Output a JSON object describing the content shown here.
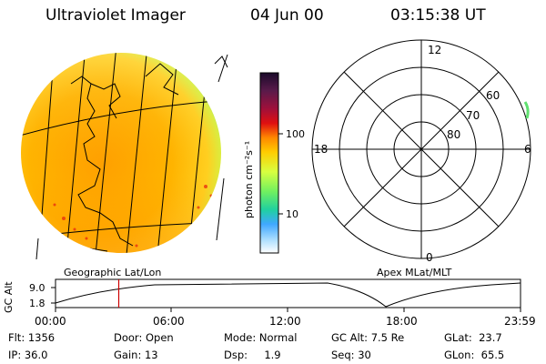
{
  "header": {
    "instrument": "Ultraviolet Imager",
    "date": "04 Jun 00",
    "time": "03:15:38 UT"
  },
  "colorbar": {
    "unit_label": "photon cm⁻²s⁻¹",
    "tick_100": "100",
    "tick_10": "10",
    "colors_top_to_bottom": [
      "#1a0a2a",
      "#5a1a4a",
      "#a0103a",
      "#e01010",
      "#ff8800",
      "#ffcc00",
      "#d8ff40",
      "#70f060",
      "#20d0a0",
      "#40a8ff",
      "#b0e0ff",
      "#ffffff"
    ]
  },
  "left_panel": {
    "label": "Geographic Lat/Lon"
  },
  "polar_plot": {
    "label": "Apex MLat/MLT",
    "mlt_top": "12",
    "mlt_left": "18",
    "mlt_right": "6",
    "mlt_bottom": "0",
    "lat_60": "60",
    "lat_70": "70",
    "lat_80": "80"
  },
  "altitude_plot": {
    "ylabel": "GC Alt",
    "ytick_high": "9.0",
    "ytick_low": "1.8",
    "xticks": [
      "00:00",
      "06:00",
      "12:00",
      "18:00",
      "23:59"
    ],
    "current_time_fraction": 0.136
  },
  "info": {
    "flt_label": "Flt:",
    "flt_value": "1356",
    "ip_label": "IP:",
    "ip_value": "36.0",
    "door_label": "Door:",
    "door_value": "Open",
    "gain_label": "Gain:",
    "gain_value": "13",
    "mode_label": "Mode:",
    "mode_value": "Normal",
    "dsp_label": "Dsp:",
    "dsp_value": "1.9",
    "gcalt_label": "GC Alt:",
    "gcalt_value": "7.5 Re",
    "seq_label": "Seq:",
    "seq_value": "30",
    "glat_label": "GLat:",
    "glat_value": "23.7",
    "glon_label": "GLon:",
    "glon_value": "65.5"
  }
}
